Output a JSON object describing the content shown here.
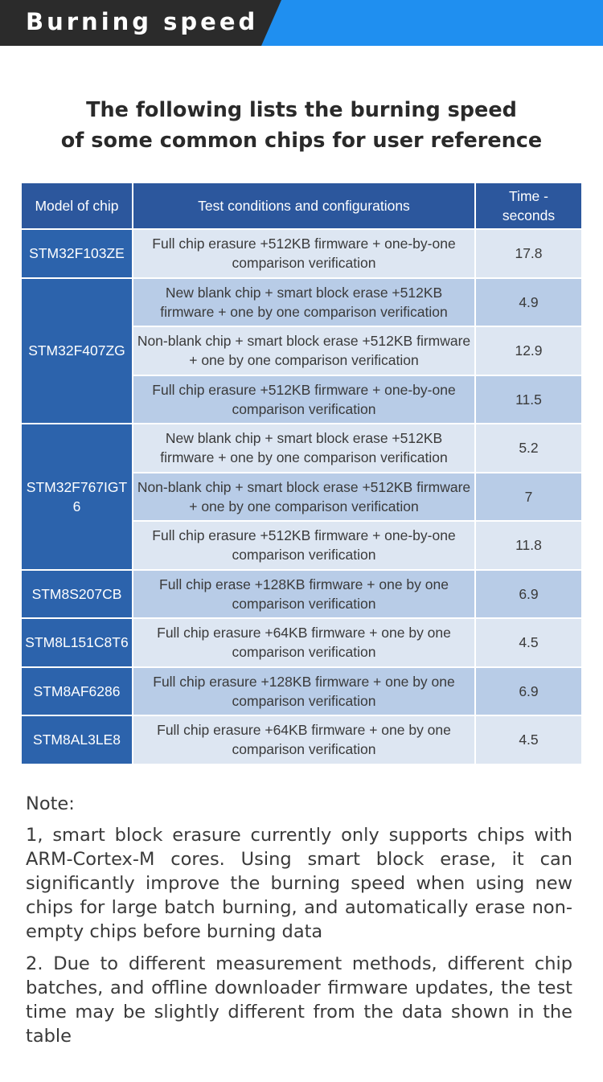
{
  "header": {
    "title": "Burning speed",
    "dark_color": "#2b2b2b",
    "accent_color": "#1f8ff0"
  },
  "intro": {
    "line1": "The following lists the burning speed",
    "line2": "of some common chips for user reference"
  },
  "table": {
    "headers": {
      "model": "Model of chip",
      "conditions": "Test conditions and configurations",
      "time_line1": "Time -",
      "time_line2": "seconds"
    },
    "header_color": "#2c579d",
    "model_color": "#2c63ac",
    "groups": [
      {
        "model": "STM32F103ZE",
        "rows": [
          {
            "condition": "Full chip erasure +512KB firmware + one-by-one comparison verification",
            "time": "17.8"
          }
        ]
      },
      {
        "model": "STM32F407ZG",
        "rows": [
          {
            "condition": "New blank chip + smart block erase +512KB firmware + one by one comparison verification",
            "time": "4.9"
          },
          {
            "condition": "Non-blank chip + smart block erase +512KB firmware + one by one comparison verification",
            "time": "12.9"
          },
          {
            "condition": "Full chip erasure +512KB firmware + one-by-one comparison verification",
            "time": "11.5"
          }
        ]
      },
      {
        "model": "STM32F767IGT6",
        "rows": [
          {
            "condition": "New blank chip + smart block erase +512KB firmware + one by one comparison verification",
            "time": "5.2"
          },
          {
            "condition": "Non-blank chip + smart block erase +512KB firmware + one by one comparison verification",
            "time": "7"
          },
          {
            "condition": "Full chip erasure +512KB firmware + one-by-one comparison verification",
            "time": "11.8"
          }
        ]
      },
      {
        "model": "STM8S207CB",
        "rows": [
          {
            "condition": "Full chip erase +128KB firmware + one by one comparison verification",
            "time": "6.9"
          }
        ]
      },
      {
        "model": "STM8L151C8T6",
        "rows": [
          {
            "condition": "Full chip erasure +64KB firmware + one by one comparison verification",
            "time": "4.5"
          }
        ]
      },
      {
        "model": "STM8AF6286",
        "rows": [
          {
            "condition": "Full chip erasure +128KB firmware + one by one comparison verification",
            "time": "6.9"
          }
        ]
      },
      {
        "model": "STM8AL3LE8",
        "rows": [
          {
            "condition": "Full chip erasure +64KB firmware + one by one comparison verification",
            "time": "4.5"
          }
        ]
      }
    ]
  },
  "notes": {
    "heading": "Note:",
    "items": [
      "1, smart block erasure currently only supports chips with ARM-Cortex-M cores. Using smart block erase, it can significantly improve the burning speed when using new chips for large batch burning, and automatically erase non-empty chips before burning data",
      "2. Due to different measurement methods, different chip batches, and offline downloader firmware updates, the test time may be slightly different from the data shown in the table"
    ]
  }
}
